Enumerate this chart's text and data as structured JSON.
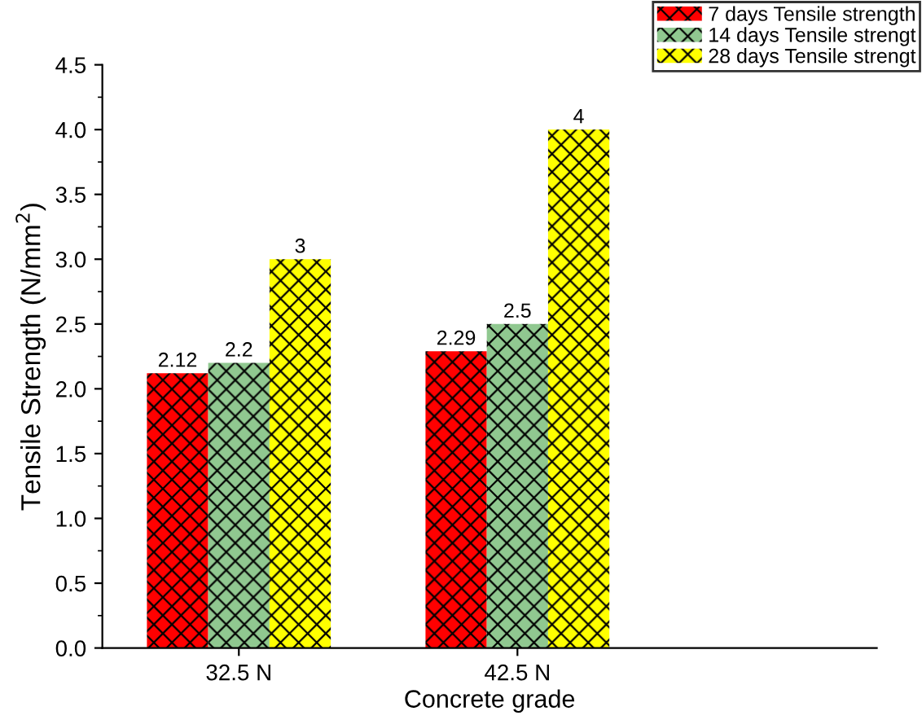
{
  "chart_data": {
    "type": "bar",
    "xlabel": "Concrete grade",
    "ylabel": "Tensile Strength (N/mm$^{2}$)",
    "categories": [
      "32.5 N",
      "42.5 N"
    ],
    "series": [
      {
        "name": "7 days Tensile strength",
        "color": "#ff0000",
        "values": [
          2.12,
          2.29
        ]
      },
      {
        "name": "14 days Tensile strengt",
        "color": "#90c890",
        "values": [
          2.2,
          2.5
        ]
      },
      {
        "name": "28 days Tensile strengt",
        "color": "#ffff00",
        "values": [
          3,
          4
        ]
      }
    ],
    "ylim": [
      0,
      4.5
    ],
    "yticks": [
      "0.0",
      "0.5",
      "1.0",
      "1.5",
      "2.0",
      "2.5",
      "3.0",
      "3.5",
      "4.0",
      "4.5"
    ],
    "data_labels": true,
    "legend": "top right",
    "grid": false
  }
}
